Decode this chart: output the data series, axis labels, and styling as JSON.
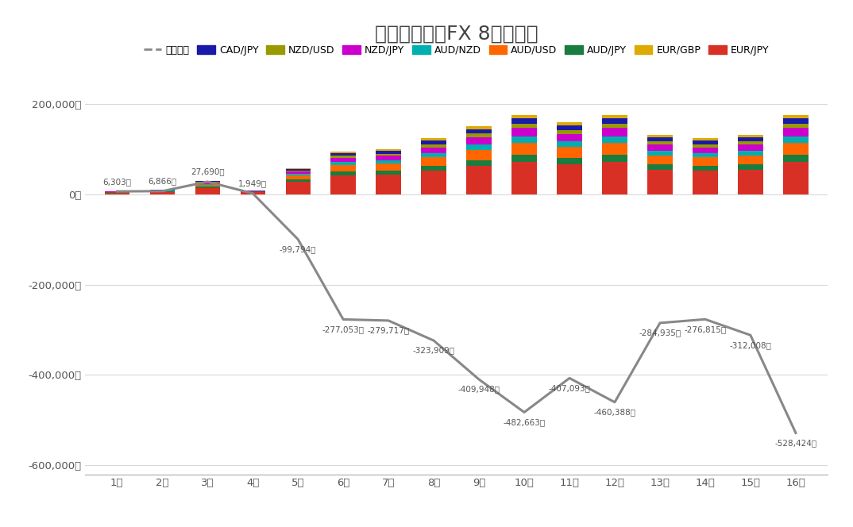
{
  "title": "トライオートFX 8通貨投資",
  "weeks": [
    "1週",
    "2週",
    "3週",
    "4週",
    "5週",
    "6週",
    "7週",
    "8週",
    "9週",
    "10週",
    "11週",
    "12週",
    "13週",
    "14週",
    "15週",
    "16週"
  ],
  "line_values": [
    6303,
    6866,
    27690,
    1949,
    -99794,
    -277053,
    -279717,
    -323909,
    -409948,
    -482663,
    -407093,
    -460388,
    -284935,
    -276815,
    -312008,
    -528424
  ],
  "raw_labels": [
    "6,303円",
    "6,866円",
    "27,690円",
    "1,949円",
    "-99,794円",
    "-277,053円",
    "-279,717円",
    "-323,909円",
    "-409,948円",
    "-482,663円",
    "-407,093円",
    "-460,388円",
    "-284,935円",
    "-276,815円",
    "-312,008円",
    "-528,424円"
  ],
  "currencies_order": [
    "EUR/JPY",
    "AUD/JPY",
    "AUD/USD",
    "AUD/NZD",
    "NZD/JPY",
    "NZD/USD",
    "CAD/JPY",
    "EUR/GBP"
  ],
  "currency_colors": {
    "EUR/JPY": "#d93025",
    "AUD/JPY": "#1a7c3e",
    "AUD/USD": "#ff6600",
    "AUD/NZD": "#00b0b0",
    "NZD/JPY": "#cc00cc",
    "NZD/USD": "#999900",
    "CAD/JPY": "#1a1aaa",
    "EUR/GBP": "#ddaa00"
  },
  "bar_data": {
    "EUR/JPY": [
      3500,
      5000,
      14000,
      5000,
      28000,
      42000,
      44000,
      52000,
      62000,
      72000,
      66000,
      72000,
      54000,
      52000,
      54000,
      72000
    ],
    "AUD/JPY": [
      600,
      800,
      2500,
      700,
      5000,
      8000,
      8500,
      11000,
      13500,
      15500,
      14000,
      15500,
      11500,
      11000,
      11500,
      15500
    ],
    "AUD/USD": [
      1000,
      1300,
      4000,
      1000,
      8000,
      14000,
      15000,
      19000,
      23000,
      27000,
      24500,
      27000,
      20000,
      19000,
      20000,
      27000
    ],
    "AUD/NZD": [
      500,
      700,
      2000,
      500,
      4000,
      7000,
      7500,
      9500,
      12000,
      14000,
      12500,
      14000,
      10500,
      9500,
      10500,
      14000
    ],
    "NZD/JPY": [
      700,
      900,
      3000,
      700,
      5500,
      9500,
      10000,
      12500,
      15500,
      18000,
      16500,
      18000,
      13500,
      12500,
      13500,
      18000
    ],
    "NZD/USD": [
      300,
      400,
      1500,
      300,
      2500,
      4500,
      5000,
      6500,
      8000,
      9500,
      8500,
      9500,
      7000,
      6500,
      7000,
      9500
    ],
    "CAD/JPY": [
      500,
      700,
      2000,
      500,
      3500,
      6000,
      6500,
      8000,
      10000,
      12000,
      11000,
      12000,
      9000,
      8000,
      9000,
      12000
    ],
    "EUR/GBP": [
      300,
      400,
      1200,
      300,
      1800,
      3500,
      4000,
      5000,
      6500,
      7500,
      7000,
      7500,
      5500,
      5000,
      5500,
      7500
    ]
  },
  "ylim": [
    -620000,
    220000
  ],
  "yticks": [
    -600000,
    -400000,
    -200000,
    0,
    200000
  ],
  "ytick_labels": [
    "-600,000円",
    "-400,000円",
    "-200,000円",
    "0円",
    "200,000円"
  ],
  "line_color": "#888888",
  "background_color": "#ffffff",
  "grid_color": "#d8d8d8",
  "legend_order": [
    "現実利益",
    "CAD/JPY",
    "NZD/USD",
    "NZD/JPY",
    "AUD/NZD",
    "AUD/USD",
    "AUD/JPY",
    "EUR/GBP",
    "EUR/JPY"
  ],
  "legend_colors": [
    "#888888",
    "#1a1aaa",
    "#999900",
    "#cc00cc",
    "#00b0b0",
    "#ff6600",
    "#1a7c3e",
    "#ddaa00",
    "#d93025"
  ]
}
